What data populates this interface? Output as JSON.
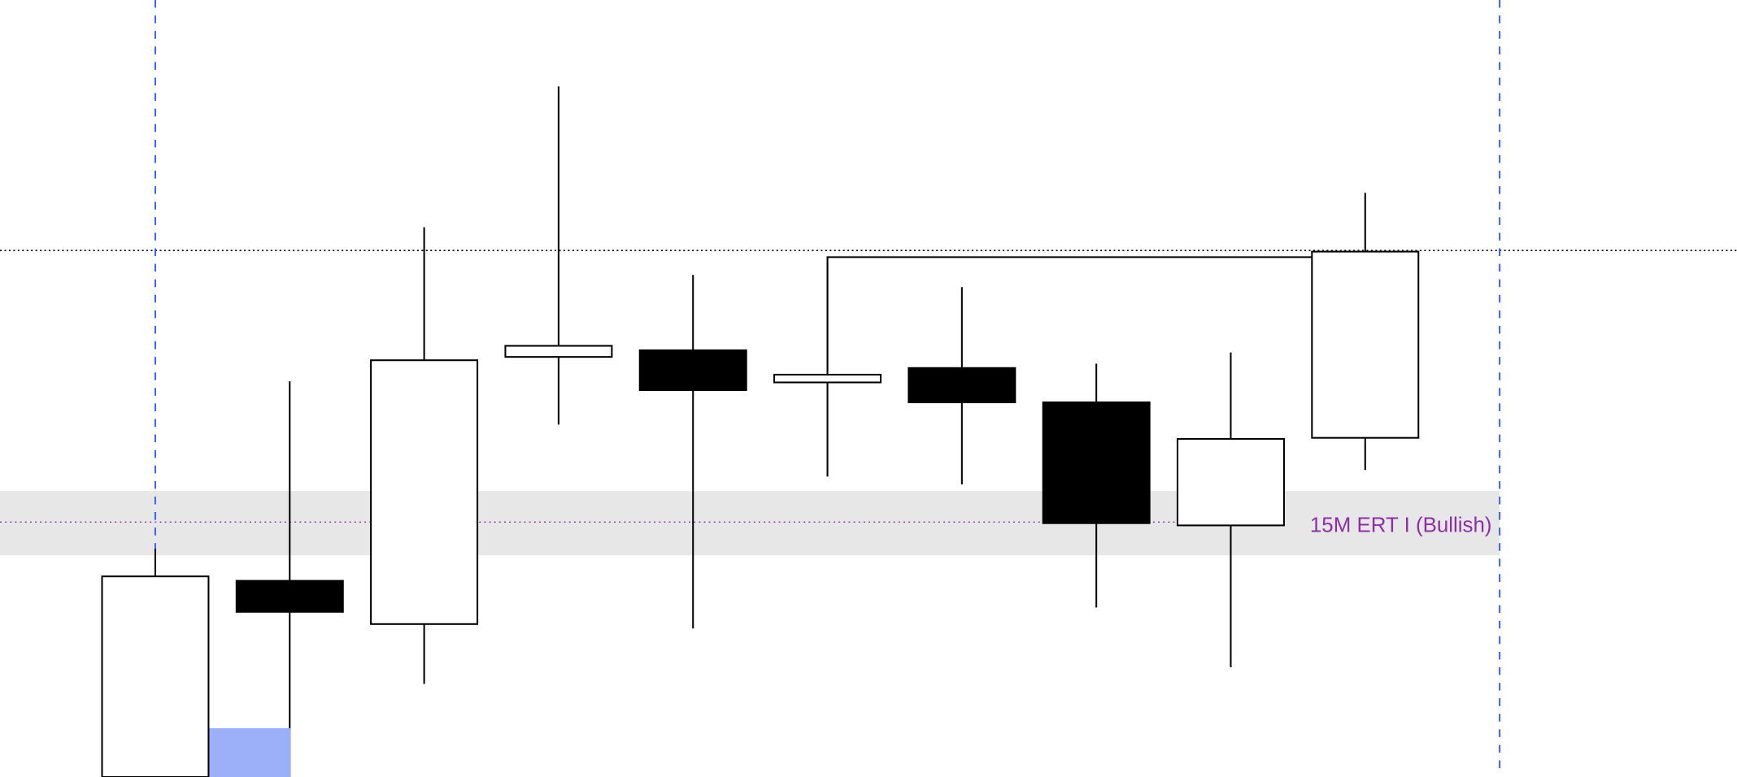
{
  "chart_data": {
    "type": "candlestick",
    "title": "",
    "xlabel": "",
    "ylabel": "",
    "ylim": [
      0,
      70.1
    ],
    "grid": false,
    "candles": [
      {
        "open": -2,
        "high": 20.6,
        "low": -5,
        "close": 18.1
      },
      {
        "open": 17.7,
        "high": 35.7,
        "low": 4.4,
        "close": 14.9
      },
      {
        "open": 13.8,
        "high": 49.6,
        "low": 8.4,
        "close": 37.6
      },
      {
        "open": 37.9,
        "high": 62.3,
        "low": 31.8,
        "close": 38.9
      },
      {
        "open": 38.5,
        "high": 45.3,
        "low": 13.4,
        "close": 34.9
      },
      {
        "open": 35.6,
        "high": 46.9,
        "low": 27.1,
        "close": 36.3
      },
      {
        "open": 36.9,
        "high": 44.2,
        "low": 26.4,
        "close": 33.8
      },
      {
        "open": 33.8,
        "high": 37.3,
        "low": 15.3,
        "close": 22.9
      },
      {
        "open": 22.7,
        "high": 38.3,
        "low": 9.9,
        "close": 30.5
      },
      {
        "open": 30.6,
        "high": 52.7,
        "low": 27.7,
        "close": 47.4
      }
    ],
    "bullish_color": "#ffffff",
    "bearish_color": "#000000",
    "annotations": {
      "zone": {
        "label": "15M ERT I (Bullish)",
        "from": 20.0,
        "to": 25.8,
        "mid": 23.0,
        "fill": "#e7e7e7",
        "line_color": "#8e2fa8",
        "label_color": "#8e2fa8"
      },
      "level_line": {
        "value": 47.5,
        "color": "#000000",
        "style": "dotted"
      },
      "high_connector": {
        "value": 46.9,
        "from_candle": 6,
        "to_candle": 10
      },
      "session_lines": {
        "candles": [
          1
        ],
        "right_boundary": true,
        "color": "#3d63f0",
        "style": "dashed"
      },
      "highlight_box": {
        "from": 0,
        "to": 4.4,
        "color": "#9bb0f8"
      }
    }
  }
}
